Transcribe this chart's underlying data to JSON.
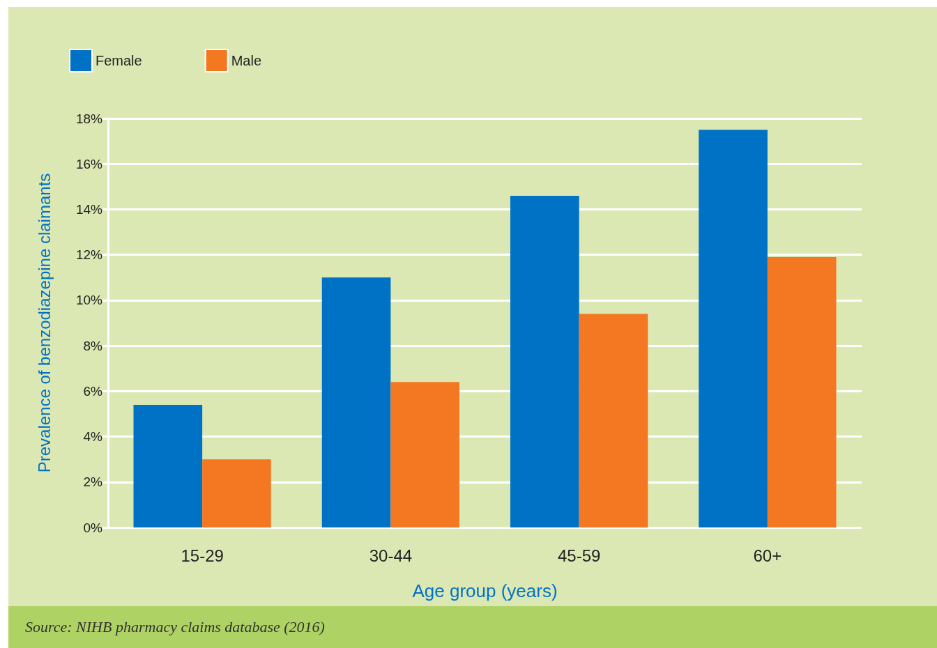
{
  "chart_data": {
    "type": "bar",
    "xlabel": "Age group (years)",
    "ylabel": "Prevalence of benzodiazepine claimants",
    "categories": [
      "15-29",
      "30-44",
      "45-59",
      "60+"
    ],
    "series": [
      {
        "name": "Female",
        "color": "#0072c6",
        "values": [
          5.4,
          11.0,
          14.6,
          17.5
        ]
      },
      {
        "name": "Male",
        "color": "#f47721",
        "values": [
          3.0,
          6.4,
          9.4,
          11.9
        ]
      }
    ],
    "ylim": [
      0,
      18
    ],
    "yticks": [
      {
        "value": 0,
        "label": "0%"
      },
      {
        "value": 2,
        "label": "2%"
      },
      {
        "value": 4,
        "label": "4%"
      },
      {
        "value": 6,
        "label": "6%"
      },
      {
        "value": 8,
        "label": "8%"
      },
      {
        "value": 10,
        "label": "10%"
      },
      {
        "value": 12,
        "label": "12%"
      },
      {
        "value": 14,
        "label": "14%"
      },
      {
        "value": 16,
        "label": "16%"
      },
      {
        "value": 18,
        "label": "18%"
      }
    ],
    "grid": "y",
    "legend": "top left",
    "annotations": [
      "Source: NIHB pharmacy claims database (2016)"
    ]
  }
}
